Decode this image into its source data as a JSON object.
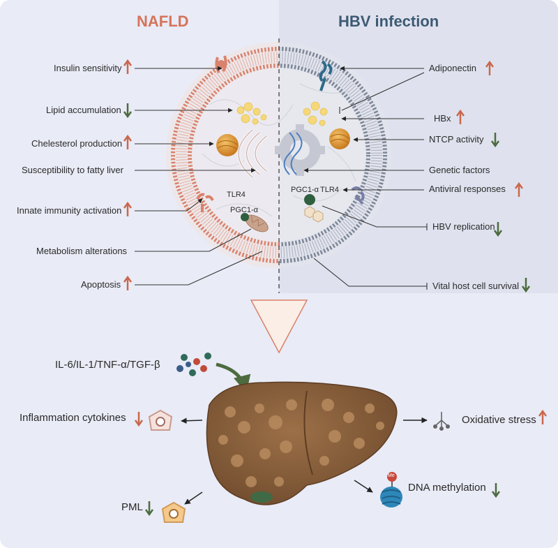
{
  "titles": {
    "left": "NAFLD",
    "right": "HBV infection"
  },
  "left_labels": {
    "insulin": "Insulin sensitivity",
    "lipid": "Lipid accumulation",
    "cholesterol": "Chelesterol production",
    "susceptibility": "Susceptibility to fatty liver",
    "innate": "Innate immunity activation",
    "metabolism": "Metabolism alterations",
    "apoptosis": "Apoptosis"
  },
  "right_labels": {
    "adiponectin": "Adiponectin",
    "hbx": "HBx",
    "ntcp": "NTCP activity",
    "genetic": "Genetic factors",
    "antiviral": "Antiviral responses",
    "hbv_replication": "HBV replication",
    "vital": "Vital host cell survival"
  },
  "cell_labels": {
    "tlr4_left": "TLR4",
    "pgc1_left": "PGC1-α",
    "pgc1_right": "PGC1-α",
    "tlr4_right": "TLR4"
  },
  "bottom_labels": {
    "cytokines_list": "IL-6/IL-1/TNF-α/TGF-β",
    "inflammation": "Inflammation cytokines",
    "oxidative": "Oxidative stress",
    "pml": "PML",
    "dna": "DNA methylation",
    "me_badge": "Me"
  },
  "colors": {
    "nafld": "#d4745a",
    "hbv": "#3d5a73",
    "up_arrow": "#c9684d",
    "down_arrow": "#4d6b3f",
    "liver": "#8a6440",
    "background": "#e9ebf6"
  }
}
